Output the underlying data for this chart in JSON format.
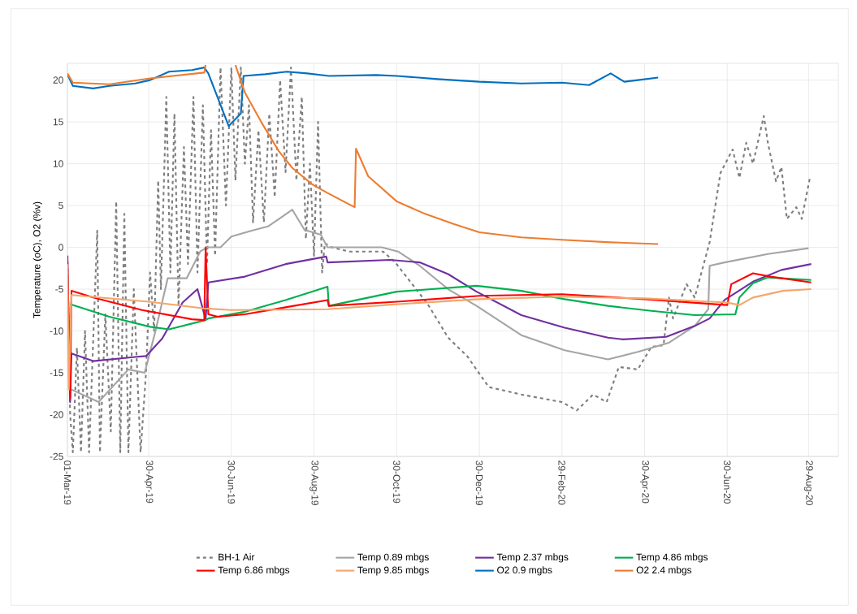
{
  "chart_data": {
    "type": "line",
    "ylabel": "Temperature (oC), O2 (%v)",
    "xlim": [
      "2019-03-01",
      "2020-09-20"
    ],
    "ylim": [
      -25,
      22
    ],
    "xticks": [
      {
        "value": "2019-03-01",
        "label": "01-Mar-19"
      },
      {
        "value": "2019-04-30",
        "label": "30-Apr-19"
      },
      {
        "value": "2019-06-30",
        "label": "30-Jun-19"
      },
      {
        "value": "2019-08-30",
        "label": "30-Aug-19"
      },
      {
        "value": "2019-10-30",
        "label": "30-Oct-19"
      },
      {
        "value": "2019-12-30",
        "label": "30-Dec-19"
      },
      {
        "value": "2020-02-29",
        "label": "29-Feb-20"
      },
      {
        "value": "2020-04-30",
        "label": "30-Apr-20"
      },
      {
        "value": "2020-06-30",
        "label": "30-Jun-20"
      },
      {
        "value": "2020-08-29",
        "label": "29-Aug-20"
      }
    ],
    "yticks": [
      -25,
      -20,
      -15,
      -10,
      -5,
      0,
      5,
      10,
      15,
      20
    ],
    "grid": true,
    "legend": "bottom",
    "series": [
      {
        "name": "BH-1 Air",
        "color": "#7f7f7f",
        "line_style": "dashed",
        "x": [
          "2019-03-01",
          "2019-03-03",
          "2019-03-05",
          "2019-03-08",
          "2019-03-11",
          "2019-03-14",
          "2019-03-17",
          "2019-03-23",
          "2019-03-25",
          "2019-03-29",
          "2019-04-02",
          "2019-04-06",
          "2019-04-09",
          "2019-04-12",
          "2019-04-15",
          "2019-04-19",
          "2019-04-24",
          "2019-04-28",
          "2019-05-01",
          "2019-05-04",
          "2019-05-07",
          "2019-05-09",
          "2019-05-13",
          "2019-05-16",
          "2019-05-19",
          "2019-05-22",
          "2019-05-26",
          "2019-05-29",
          "2019-06-02",
          "2019-06-05",
          "2019-06-09",
          "2019-06-12",
          "2019-06-15",
          "2019-06-18",
          "2019-06-22",
          "2019-06-26",
          "2019-06-30",
          "2019-07-03",
          "2019-07-07",
          "2019-07-10",
          "2019-07-13",
          "2019-07-16",
          "2019-07-20",
          "2019-07-24",
          "2019-07-28",
          "2019-08-01",
          "2019-08-05",
          "2019-08-09",
          "2019-08-13",
          "2019-08-17",
          "2019-08-21",
          "2019-08-24",
          "2019-08-27",
          "2019-08-30",
          "2019-09-02",
          "2019-09-05",
          "2019-09-07",
          "2019-09-12",
          "2019-09-25",
          "2019-10-20",
          "2019-10-29",
          "2019-11-22",
          "2019-12-07",
          "2019-12-21",
          "2020-01-06",
          "2020-01-30",
          "2020-02-29",
          "2020-03-11",
          "2020-03-23",
          "2020-04-02",
          "2020-04-11",
          "2020-04-25",
          "2020-05-05",
          "2020-05-14",
          "2020-05-18",
          "2020-05-21",
          "2020-05-31",
          "2020-06-06",
          "2020-06-17",
          "2020-06-25",
          "2020-07-04",
          "2020-07-09",
          "2020-07-14",
          "2020-07-19",
          "2020-07-27",
          "2020-07-30",
          "2020-08-05",
          "2020-08-09",
          "2020-08-13",
          "2020-08-20",
          "2020-08-24",
          "2020-08-30"
        ],
        "values": [
          -1,
          -20,
          -24.5,
          -12,
          -24.5,
          -10,
          -24.5,
          2,
          -24.5,
          -8,
          -22,
          5.5,
          -24.5,
          4,
          -24.5,
          -5,
          -24.5,
          -15,
          -3,
          -10,
          8,
          -5,
          18,
          -3,
          16,
          -7,
          12,
          -2,
          18,
          -3,
          17,
          -2,
          14,
          -1,
          21.5,
          5,
          21.5,
          8,
          21.5,
          10,
          17,
          3,
          14,
          3,
          16,
          6,
          20,
          9,
          21.5,
          8,
          18,
          1,
          10,
          -1,
          15,
          -3,
          0.5,
          0,
          -0.5,
          -0.5,
          -1.8,
          -6.8,
          -10.8,
          -13,
          -16.7,
          -17.6,
          -18.5,
          -19.5,
          -17.6,
          -18.5,
          -14.3,
          -14.6,
          -11.9,
          -11.7,
          -6,
          -8.5,
          -4.4,
          -6,
          0.6,
          8.9,
          11.7,
          8.3,
          12.5,
          10,
          15.7,
          12.5,
          7.9,
          9.6,
          3.4,
          4.8,
          3.4,
          8.3
        ]
      },
      {
        "name": "Temp 0.89 mbgs",
        "color": "#a5a5a5",
        "x": [
          "2019-03-04",
          "2019-03-24",
          "2019-04-15",
          "2019-04-27",
          "2019-05-05",
          "2019-05-14",
          "2019-05-28",
          "2019-06-07",
          "2019-06-12",
          "2019-06-22",
          "2019-06-30",
          "2019-07-15",
          "2019-07-27",
          "2019-08-05",
          "2019-08-14",
          "2019-08-23",
          "2019-09-04",
          "2019-09-09",
          "2019-10-19",
          "2019-10-31",
          "2019-11-16",
          "2019-12-07",
          "2019-12-28",
          "2020-01-30",
          "2020-03-02",
          "2020-04-03",
          "2020-04-25",
          "2020-05-18",
          "2020-06-06",
          "2020-06-16",
          "2020-06-17",
          "2020-06-28",
          "2020-07-30",
          "2020-08-29"
        ],
        "values": [
          -17,
          -18.5,
          -14.6,
          -15,
          -10,
          -3.7,
          -3.7,
          -0.5,
          0,
          0,
          1.3,
          2,
          2.5,
          3.5,
          4.5,
          2.1,
          1.5,
          0,
          0,
          -0.5,
          -2.2,
          -5,
          -7,
          -10.5,
          -12.3,
          -13.4,
          -12.5,
          -11.4,
          -9.4,
          -7.4,
          -2.2,
          -1.8,
          -0.8,
          -0.1
        ]
      },
      {
        "name": "Temp 2.37 mbgs",
        "color": "#7030a0",
        "x": [
          "2019-03-01",
          "2019-03-03",
          "2019-03-04",
          "2019-03-20",
          "2019-04-20",
          "2019-04-28",
          "2019-05-10",
          "2019-05-25",
          "2019-06-05",
          "2019-06-11",
          "2019-06-13",
          "2019-07-10",
          "2019-08-09",
          "2019-09-08",
          "2019-09-09",
          "2019-10-25",
          "2019-11-16",
          "2019-12-07",
          "2019-12-28",
          "2020-01-30",
          "2020-03-02",
          "2020-04-03",
          "2020-04-14",
          "2020-05-16",
          "2020-06-06",
          "2020-06-17",
          "2020-06-28",
          "2020-07-19",
          "2020-08-09",
          "2020-08-31"
        ],
        "values": [
          -1,
          -18.5,
          -12.7,
          -13.6,
          -13.1,
          -13,
          -10.9,
          -6.6,
          -5,
          -8.6,
          -4.2,
          -3.5,
          -2,
          -1.1,
          -1.8,
          -1.5,
          -1.8,
          -3.2,
          -5.3,
          -8.1,
          -9.6,
          -10.8,
          -11,
          -10.7,
          -9.4,
          -8.5,
          -6.3,
          -4.1,
          -2.7,
          -2
        ]
      },
      {
        "name": "Temp 4.86 mbgs",
        "color": "#00b050",
        "x": [
          "2019-03-03",
          "2019-04-01",
          "2019-05-01",
          "2019-05-15",
          "2019-06-11",
          "2019-06-13",
          "2019-07-10",
          "2019-08-09",
          "2019-09-09",
          "2019-09-10",
          "2019-10-30",
          "2019-12-28",
          "2020-01-30",
          "2020-03-02",
          "2020-04-03",
          "2020-05-05",
          "2020-06-06",
          "2020-07-06",
          "2020-07-09",
          "2020-07-19",
          "2020-07-30",
          "2020-08-31"
        ],
        "values": [
          -6.8,
          -8.3,
          -9.5,
          -9.8,
          -8.7,
          -8.5,
          -7.7,
          -6.3,
          -4.7,
          -7,
          -5.3,
          -4.6,
          -5.2,
          -6.2,
          -7,
          -7.6,
          -8.1,
          -8,
          -6,
          -4.3,
          -3.6,
          -3.9
        ]
      },
      {
        "name": "Temp 6.86 mbgs",
        "color": "#ff0000",
        "x": [
          "2019-03-01",
          "2019-03-03",
          "2019-03-04",
          "2019-03-20",
          "2019-04-25",
          "2019-06-01",
          "2019-06-10",
          "2019-06-11",
          "2019-06-13",
          "2019-06-20",
          "2019-07-10",
          "2019-08-15",
          "2019-09-09",
          "2019-09-10",
          "2019-10-30",
          "2019-12-30",
          "2020-02-29",
          "2020-04-30",
          "2020-06-30",
          "2020-07-03",
          "2020-07-19",
          "2020-08-01",
          "2020-08-31"
        ],
        "values": [
          -1.5,
          -18,
          -5.2,
          -6,
          -7.5,
          -8.6,
          -8.7,
          0,
          -8,
          -8.3,
          -8,
          -7,
          -6.3,
          -7,
          -6.5,
          -5.8,
          -5.6,
          -6.2,
          -6.9,
          -4.4,
          -3.1,
          -3.5,
          -4.2
        ]
      },
      {
        "name": "Temp 9.85 mbgs",
        "color": "#f4a66a",
        "x": [
          "2019-03-01",
          "2019-03-02",
          "2019-03-04",
          "2019-04-30",
          "2019-06-10",
          "2019-06-30",
          "2019-09-09",
          "2019-10-30",
          "2019-12-30",
          "2020-02-29",
          "2020-04-30",
          "2020-06-30",
          "2020-07-09",
          "2020-07-19",
          "2020-08-10",
          "2020-08-31"
        ],
        "values": [
          -2,
          -17,
          -5.7,
          -6.5,
          -7.3,
          -7.5,
          -7.4,
          -6.8,
          -6.2,
          -5.9,
          -6.1,
          -6.6,
          -6.9,
          -6,
          -5.2,
          -5
        ]
      },
      {
        "name": "O2 0.9 mgbs",
        "color": "#0070c0",
        "x": [
          "2019-03-01",
          "2019-03-05",
          "2019-03-20",
          "2019-04-01",
          "2019-04-20",
          "2019-05-01",
          "2019-05-15",
          "2019-06-01",
          "2019-06-10",
          "2019-06-13",
          "2019-06-28",
          "2019-07-07",
          "2019-07-09",
          "2019-07-25",
          "2019-08-10",
          "2019-08-25",
          "2019-09-10",
          "2019-10-15",
          "2019-10-30",
          "2019-11-15",
          "2019-12-01",
          "2019-12-30",
          "2020-01-30",
          "2020-02-29",
          "2020-03-20",
          "2020-04-05",
          "2020-04-15",
          "2020-04-25",
          "2020-05-10"
        ],
        "values": [
          20.7,
          19.3,
          19,
          19.3,
          19.6,
          20,
          21,
          21.2,
          21.5,
          20.8,
          14.5,
          16,
          20.5,
          20.7,
          21,
          20.8,
          20.5,
          20.6,
          20.5,
          20.3,
          20.1,
          19.8,
          19.6,
          19.7,
          19.4,
          20.8,
          19.8,
          20,
          20.3
        ]
      },
      {
        "name": "O2 2.4 mbgs",
        "color": "#ed7d31",
        "x": [
          "2019-03-01",
          "2019-03-05",
          "2019-04-01",
          "2019-05-01",
          "2019-06-10",
          "2019-06-11",
          "2019-06-20",
          "2019-07-03",
          "2019-07-10",
          "2019-07-22",
          "2019-08-04",
          "2019-08-14",
          "2019-08-29",
          "2019-09-09",
          "2019-09-29",
          "2019-09-30",
          "2019-10-09",
          "2019-10-30",
          "2019-11-20",
          "2019-12-11",
          "2019-12-30",
          "2020-01-30",
          "2020-02-29",
          "2020-04-05",
          "2020-05-10"
        ],
        "values": [
          20.8,
          19.7,
          19.5,
          20.2,
          20.9,
          21.8,
          null,
          21.8,
          18.5,
          15,
          11.5,
          9.5,
          7.5,
          6.5,
          4.8,
          11.8,
          8.5,
          5.5,
          4,
          2.8,
          1.8,
          1.2,
          0.9,
          0.6,
          0.4
        ]
      }
    ]
  }
}
